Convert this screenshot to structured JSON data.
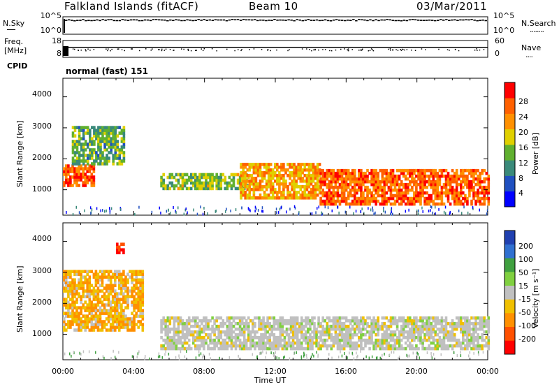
{
  "header": {
    "title": "Falkland Islands (fitACF)",
    "beam": "Beam 10",
    "date": "03/Mar/2011"
  },
  "noise_panel": {
    "left_label": "N.Sky",
    "right_label": "N.Search",
    "left_ticks": [
      "10^5",
      "10^0"
    ],
    "right_ticks": [
      "10^5",
      "10^0"
    ],
    "right_legend_dots": "........"
  },
  "freq_panel": {
    "left_label_line1": "Freq.",
    "left_label_line2": "[MHz]",
    "right_label": "Nave",
    "left_ticks": [
      "18",
      "8"
    ],
    "right_ticks": [
      "60",
      "0"
    ],
    "right_legend_dots": "...."
  },
  "cpid": {
    "label": "CPID",
    "value": "normal (fast) 151"
  },
  "power_panel": {
    "ylabel": "Slant Range [km]",
    "yticks": [
      "4000",
      "3000",
      "2000",
      "1000"
    ],
    "colorbar_label": "Power [dB]",
    "colorbar_ticks": [
      "28",
      "24",
      "20",
      "16",
      "12",
      "8",
      "4"
    ],
    "colors": [
      "#0000ff",
      "#2050c0",
      "#3a8a7a",
      "#60b030",
      "#e0d000",
      "#ff9000",
      "#ff6000",
      "#ff0000"
    ]
  },
  "velocity_panel": {
    "ylabel": "Slant Range [km]",
    "yticks": [
      "4000",
      "3000",
      "2000",
      "1000"
    ],
    "colorbar_label": "Velocity [m s⁻¹]",
    "colorbar_ticks": [
      "200",
      "100",
      "50",
      "15",
      "-15",
      "-50",
      "-100",
      "-200"
    ],
    "colors": [
      "#2040b0",
      "#3070d0",
      "#40a040",
      "#80d040",
      "#c0c0c0",
      "#f0c000",
      "#ff9000",
      "#ff5000",
      "#ff0000"
    ]
  },
  "xaxis": {
    "label": "Time UT",
    "ticks": [
      "00:00",
      "04:00",
      "08:00",
      "12:00",
      "16:00",
      "20:00",
      "00:00"
    ]
  },
  "chart_data": [
    {
      "type": "heatmap",
      "title": "Falkland Islands (fitACF) Beam 10 03/Mar/2011",
      "xlabel": "Time UT",
      "ylabel": "Slant Range [km]",
      "xlim": [
        0,
        24
      ],
      "ylim": [
        180,
        4600
      ],
      "zlabel": "Power [dB]",
      "zlim": [
        0,
        30
      ],
      "bands": [
        {
          "t0": 0.0,
          "t1": 1.8,
          "r0": 1100,
          "r1": 1800,
          "z": 24
        },
        {
          "t0": 0.5,
          "t1": 3.5,
          "r0": 1800,
          "r1": 3000,
          "z": 12
        },
        {
          "t0": 5.5,
          "t1": 10.5,
          "r0": 1000,
          "r1": 1500,
          "z": 14
        },
        {
          "t0": 10.0,
          "t1": 14.5,
          "r0": 700,
          "r1": 1800,
          "z": 20
        },
        {
          "t0": 14.5,
          "t1": 24.0,
          "r0": 500,
          "r1": 1600,
          "z": 24
        }
      ]
    },
    {
      "type": "heatmap",
      "title": "",
      "xlabel": "Time UT",
      "ylabel": "Slant Range [km]",
      "xlim": [
        0,
        24
      ],
      "ylim": [
        180,
        4600
      ],
      "zlabel": "Velocity [m s⁻¹]",
      "zlim": [
        -200,
        200
      ],
      "bands": [
        {
          "t0": 0.0,
          "t1": 4.5,
          "r0": 1100,
          "r1": 3000,
          "z": -30
        },
        {
          "t0": 3.0,
          "t1": 3.4,
          "r0": 3600,
          "r1": 3900,
          "z": -150
        },
        {
          "t0": 5.5,
          "t1": 24.0,
          "r0": 500,
          "r1": 1500,
          "z": 0
        }
      ]
    }
  ]
}
